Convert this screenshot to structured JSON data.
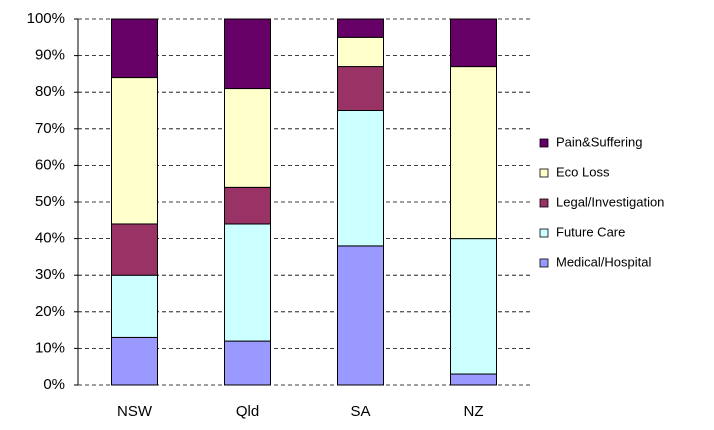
{
  "chart_data": {
    "type": "stacked_bar",
    "categories": [
      "NSW",
      "Qld",
      "SA",
      "NZ"
    ],
    "series": [
      {
        "name": "Medical/Hospital",
        "color": "#9999ff",
        "values": [
          13,
          12,
          38,
          3
        ]
      },
      {
        "name": "Future Care",
        "color": "#ccffff",
        "values": [
          17,
          32,
          37,
          37
        ]
      },
      {
        "name": "Legal/Investigation",
        "color": "#993366",
        "values": [
          14,
          10,
          12,
          0
        ]
      },
      {
        "name": "Eco Loss",
        "color": "#ffffcc",
        "values": [
          40,
          27,
          8,
          47
        ]
      },
      {
        "name": "Pain&Suffering",
        "color": "#660066",
        "values": [
          16,
          19,
          5,
          13
        ]
      }
    ],
    "ylim": [
      0,
      100
    ],
    "yticks": [
      {
        "value": 0,
        "label": "0%"
      },
      {
        "value": 10,
        "label": "10%"
      },
      {
        "value": 20,
        "label": "20%"
      },
      {
        "value": 30,
        "label": "30%"
      },
      {
        "value": 40,
        "label": "40%"
      },
      {
        "value": 50,
        "label": "50%"
      },
      {
        "value": 60,
        "label": "60%"
      },
      {
        "value": 70,
        "label": "70%"
      },
      {
        "value": 80,
        "label": "80%"
      },
      {
        "value": 90,
        "label": "90%"
      },
      {
        "value": 100,
        "label": "100%"
      }
    ],
    "grid": true,
    "legend": "right"
  }
}
